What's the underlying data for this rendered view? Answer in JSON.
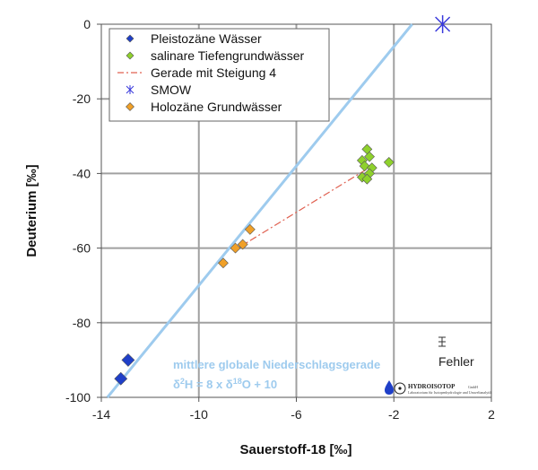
{
  "chart_data": {
    "type": "scatter",
    "xlabel": "Sauerstoff-18 [‰]",
    "ylabel": "Deuterium [‰]",
    "xlim": [
      -14,
      2
    ],
    "ylim": [
      -100,
      0
    ],
    "x_ticks": [
      "-14",
      "-10",
      "-6",
      "-2",
      "2"
    ],
    "y_ticks": [
      "0",
      "-20",
      "-40",
      "-60",
      "-80",
      "-100"
    ],
    "grid": true,
    "legend_position": "top-left",
    "series": [
      {
        "name": "Pleistozäne Wässer",
        "marker": "diamond",
        "color": "#1f3fc8",
        "points": [
          [
            -12.9,
            -90
          ],
          [
            -13.2,
            -95
          ]
        ]
      },
      {
        "name": "salinare Tiefengrundwässer",
        "marker": "diamond",
        "color": "#8fd12c",
        "points": [
          [
            -3.1,
            -33.5
          ],
          [
            -3.0,
            -35.5
          ],
          [
            -3.3,
            -36.5
          ],
          [
            -2.2,
            -37
          ],
          [
            -3.2,
            -38
          ],
          [
            -2.9,
            -38.5
          ],
          [
            -3.0,
            -40
          ],
          [
            -3.3,
            -41
          ],
          [
            -3.1,
            -41.5
          ]
        ]
      },
      {
        "name": "Gerade mit Steigung 4",
        "type": "line",
        "style": "dash-dot",
        "color": "#e06050",
        "points": [
          [
            -8.4,
            -60
          ],
          [
            -3.1,
            -38.8
          ]
        ]
      },
      {
        "name": "SMOW",
        "marker": "asterisk",
        "color": "#3a3adc",
        "points": [
          [
            0,
            0
          ]
        ]
      },
      {
        "name": "Holozäne Grundwässer",
        "marker": "diamond",
        "color": "#f0a028",
        "points": [
          [
            -7.9,
            -55
          ],
          [
            -8.2,
            -59
          ],
          [
            -8.5,
            -60
          ],
          [
            -9.0,
            -64
          ]
        ]
      },
      {
        "name": "",
        "type": "line",
        "color": "#9ecbee",
        "points": [
          [
            -13.75,
            -100
          ],
          [
            -1.25,
            0
          ]
        ]
      }
    ],
    "annotations": {
      "gmwl_line1": "mittlere globale Niederschlagsgerade",
      "gmwl_line2_a": "δ",
      "gmwl_line2_sup1": "2",
      "gmwl_line2_b": "H = 8 x δ",
      "gmwl_line2_sup2": "18",
      "gmwl_line2_c": "O + 10",
      "error_label": "Fehler"
    }
  },
  "logo": {
    "name": "HYDROISOTOP",
    "suffix": "GmbH",
    "tagline": "Laboratorium für Isotopenhydrologie und Umweltanalytik"
  }
}
